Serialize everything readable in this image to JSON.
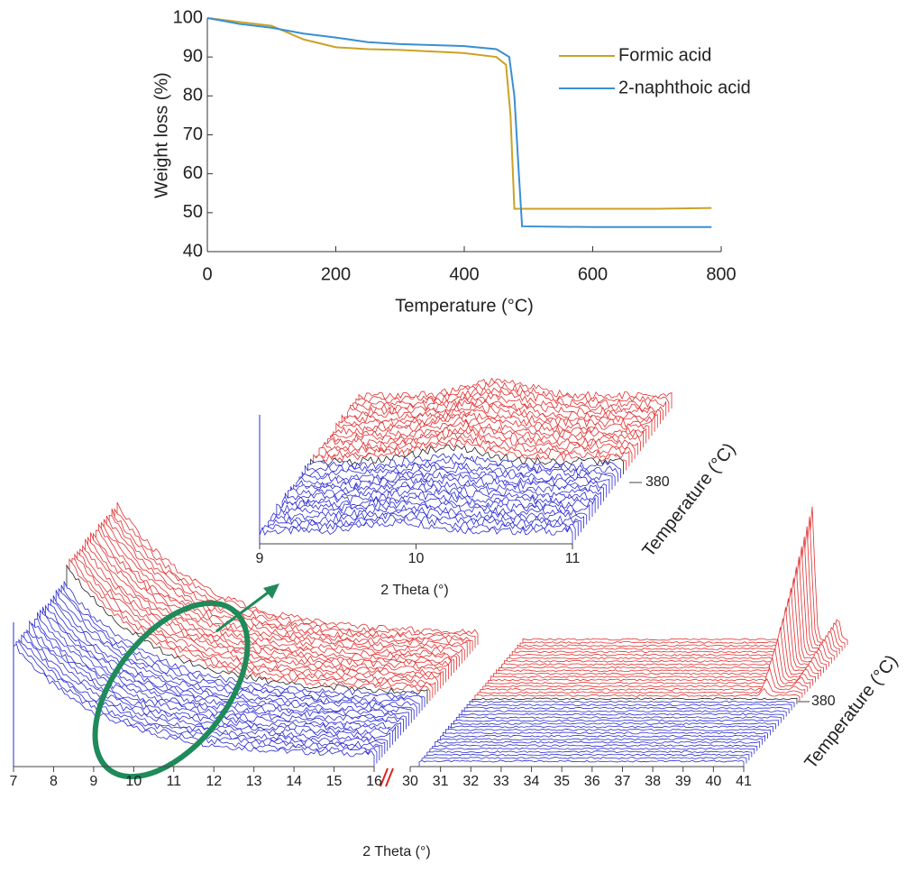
{
  "chart_data": [
    {
      "type": "line",
      "xlabel": "Temperature (°C)",
      "ylabel": "Weight loss (%)",
      "xlim": [
        0,
        800
      ],
      "ylim": [
        40,
        100
      ],
      "xticks": [
        0,
        200,
        400,
        600,
        800
      ],
      "yticks": [
        40,
        50,
        60,
        70,
        80,
        90,
        100
      ],
      "legend": "upper right",
      "series": [
        {
          "name": "Formic acid",
          "color": "#c9a227",
          "x": [
            0,
            50,
            100,
            150,
            200,
            250,
            300,
            400,
            450,
            465,
            472,
            478,
            500,
            600,
            700,
            785
          ],
          "values": [
            100,
            99,
            98,
            94.5,
            92.5,
            92,
            91.8,
            91,
            90,
            88,
            75,
            51,
            51,
            51,
            51,
            51.2
          ]
        },
        {
          "name": "2-naphthoic acid",
          "color": "#3a8fd1",
          "x": [
            0,
            50,
            100,
            150,
            200,
            250,
            300,
            400,
            450,
            470,
            478,
            485,
            490,
            600,
            785
          ],
          "values": [
            100,
            98.5,
            97.5,
            96,
            95,
            93.8,
            93.3,
            92.8,
            92,
            90,
            80,
            60,
            46.5,
            46.3,
            46.3
          ]
        }
      ]
    },
    {
      "type": "waterfall",
      "xlabel": "2 Theta (°)",
      "zlabel": "Temperature (°C)",
      "xlim": [
        9,
        11
      ],
      "xticks": [
        9,
        10,
        11
      ],
      "zticks": [
        380
      ]
    },
    {
      "type": "waterfall",
      "xlabel": "2 Theta (°)",
      "zlabel": "Temperature (°C)",
      "zticks": [
        380
      ],
      "panels": [
        {
          "xlim": [
            7,
            16
          ],
          "xticks": [
            7,
            8,
            9,
            10,
            11,
            12,
            13,
            14,
            15,
            16
          ]
        },
        {
          "xlim": [
            30,
            41
          ],
          "xticks": [
            30,
            31,
            32,
            33,
            34,
            35,
            36,
            37,
            38,
            39,
            40,
            41
          ]
        }
      ]
    }
  ]
}
